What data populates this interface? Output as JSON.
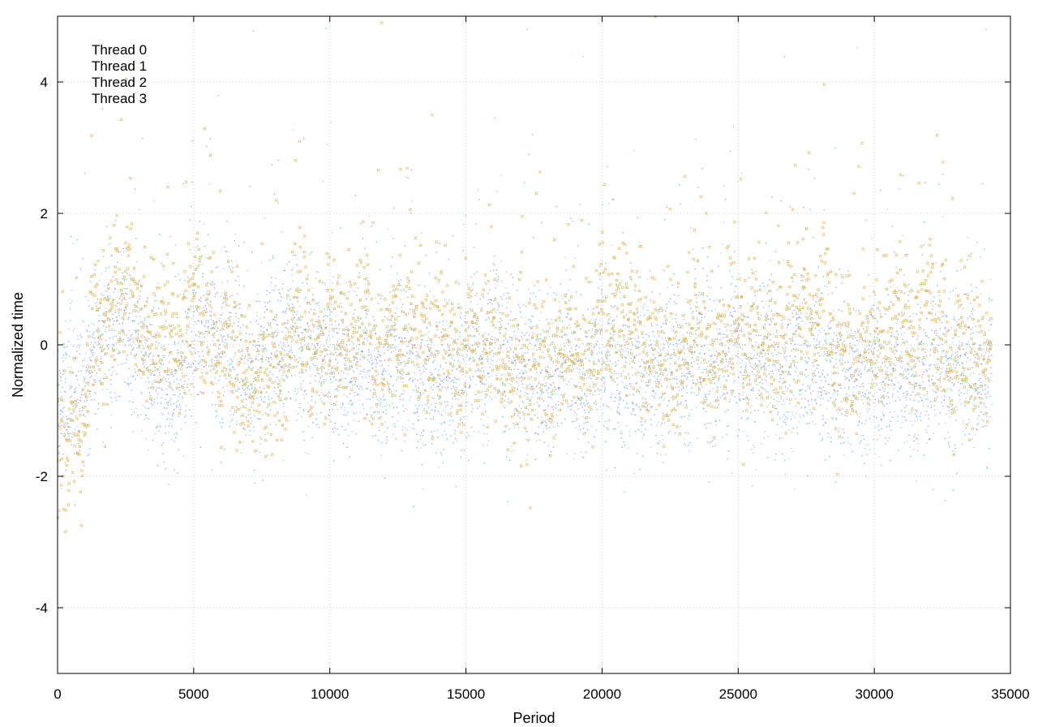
{
  "chart_data": {
    "type": "scatter",
    "title": "",
    "xlabel": "Period",
    "ylabel": "Normalized time",
    "xlim": [
      0,
      35000
    ],
    "ylim": [
      -5,
      5
    ],
    "x_ticks": [
      0,
      5000,
      10000,
      15000,
      20000,
      25000,
      30000,
      35000
    ],
    "x_tick_labels": [
      "0",
      "5000",
      "10000",
      "15000",
      "20000",
      "25000",
      "30000",
      "35000"
    ],
    "y_ticks": [
      -4,
      -2,
      0,
      2,
      4
    ],
    "y_tick_labels": [
      "-4",
      "-2",
      "0",
      "2",
      "4"
    ],
    "grid": true,
    "legend_position": "top-left",
    "x_max_data": 34300,
    "series": [
      {
        "name": "Thread 0",
        "color": "#9a6fd6",
        "marker": "dot",
        "mean_profile": [
          [
            0,
            -0.9
          ],
          [
            500,
            -0.7
          ],
          [
            1000,
            -0.9
          ],
          [
            1500,
            0.2
          ],
          [
            2000,
            -0.2
          ],
          [
            2500,
            0.4
          ],
          [
            3000,
            0.0
          ],
          [
            4000,
            -0.5
          ],
          [
            5000,
            0.1
          ],
          [
            6000,
            -0.2
          ],
          [
            7000,
            -0.3
          ],
          [
            8000,
            0.0
          ],
          [
            9000,
            -0.2
          ],
          [
            10000,
            0.0
          ],
          [
            12000,
            -0.3
          ],
          [
            14000,
            -0.3
          ],
          [
            16000,
            -0.1
          ],
          [
            18000,
            -0.4
          ],
          [
            20000,
            -0.3
          ],
          [
            22000,
            -0.2
          ],
          [
            24000,
            -0.3
          ],
          [
            26000,
            -0.1
          ],
          [
            28000,
            -0.2
          ],
          [
            30000,
            -0.3
          ],
          [
            32000,
            -0.4
          ],
          [
            34300,
            -0.2
          ]
        ],
        "spread": 0.45
      },
      {
        "name": "Thread 1",
        "color": "#2aa8d8",
        "marker": "dot",
        "mean_profile": [
          [
            0,
            -0.8
          ],
          [
            500,
            -0.9
          ],
          [
            1000,
            -1.0
          ],
          [
            1500,
            0.1
          ],
          [
            2000,
            0.3
          ],
          [
            2500,
            0.6
          ],
          [
            3000,
            0.1
          ],
          [
            4000,
            -0.7
          ],
          [
            5000,
            0.2
          ],
          [
            6000,
            0.0
          ],
          [
            7000,
            -0.4
          ],
          [
            8000,
            -0.2
          ],
          [
            9000,
            -0.2
          ],
          [
            10000,
            -0.1
          ],
          [
            12000,
            -0.4
          ],
          [
            14000,
            -0.5
          ],
          [
            16000,
            -0.2
          ],
          [
            18000,
            -0.5
          ],
          [
            20000,
            -0.4
          ],
          [
            22000,
            -0.3
          ],
          [
            24000,
            -0.2
          ],
          [
            26000,
            -0.4
          ],
          [
            28000,
            -0.5
          ],
          [
            30000,
            -0.3
          ],
          [
            32000,
            -0.5
          ],
          [
            34300,
            -0.3
          ]
        ],
        "spread": 0.6
      },
      {
        "name": "Thread 2",
        "color": "#7bbfd0",
        "marker": "dot",
        "mean_profile": [
          [
            0,
            -0.7
          ],
          [
            500,
            -0.8
          ],
          [
            1000,
            -0.9
          ],
          [
            1500,
            0.0
          ],
          [
            2000,
            0.1
          ],
          [
            2500,
            0.5
          ],
          [
            3000,
            0.0
          ],
          [
            4000,
            -0.6
          ],
          [
            5000,
            0.1
          ],
          [
            6000,
            -0.1
          ],
          [
            7000,
            -0.5
          ],
          [
            8000,
            -0.3
          ],
          [
            9000,
            -0.3
          ],
          [
            10000,
            -0.2
          ],
          [
            12000,
            -0.5
          ],
          [
            14000,
            -0.4
          ],
          [
            16000,
            -0.3
          ],
          [
            18000,
            -0.5
          ],
          [
            20000,
            -0.5
          ],
          [
            22000,
            -0.4
          ],
          [
            24000,
            -0.3
          ],
          [
            26000,
            -0.5
          ],
          [
            28000,
            -0.6
          ],
          [
            30000,
            -0.4
          ],
          [
            32000,
            -0.6
          ],
          [
            34300,
            -0.2
          ]
        ],
        "spread": 0.55
      },
      {
        "name": "Thread 3",
        "color": "#d4a72c",
        "marker": "square",
        "mean_profile": [
          [
            0,
            -1.5
          ],
          [
            500,
            -1.6
          ],
          [
            1000,
            -1.2
          ],
          [
            1500,
            0.4
          ],
          [
            2000,
            0.5
          ],
          [
            2500,
            0.8
          ],
          [
            3000,
            0.3
          ],
          [
            4000,
            0.0
          ],
          [
            5000,
            0.3
          ],
          [
            6000,
            0.2
          ],
          [
            7000,
            -0.4
          ],
          [
            7800,
            -0.8
          ],
          [
            8500,
            0.1
          ],
          [
            9000,
            0.2
          ],
          [
            10000,
            0.1
          ],
          [
            12000,
            0.0
          ],
          [
            14000,
            0.1
          ],
          [
            16000,
            0.0
          ],
          [
            17300,
            -1.0
          ],
          [
            18000,
            0.0
          ],
          [
            20000,
            0.1
          ],
          [
            22000,
            0.0
          ],
          [
            24000,
            0.1
          ],
          [
            26000,
            0.0
          ],
          [
            27000,
            0.4
          ],
          [
            28000,
            0.5
          ],
          [
            29500,
            -0.6
          ],
          [
            30000,
            0.2
          ],
          [
            32000,
            0.2
          ],
          [
            34300,
            -0.1
          ]
        ],
        "spread": 0.55
      }
    ]
  }
}
